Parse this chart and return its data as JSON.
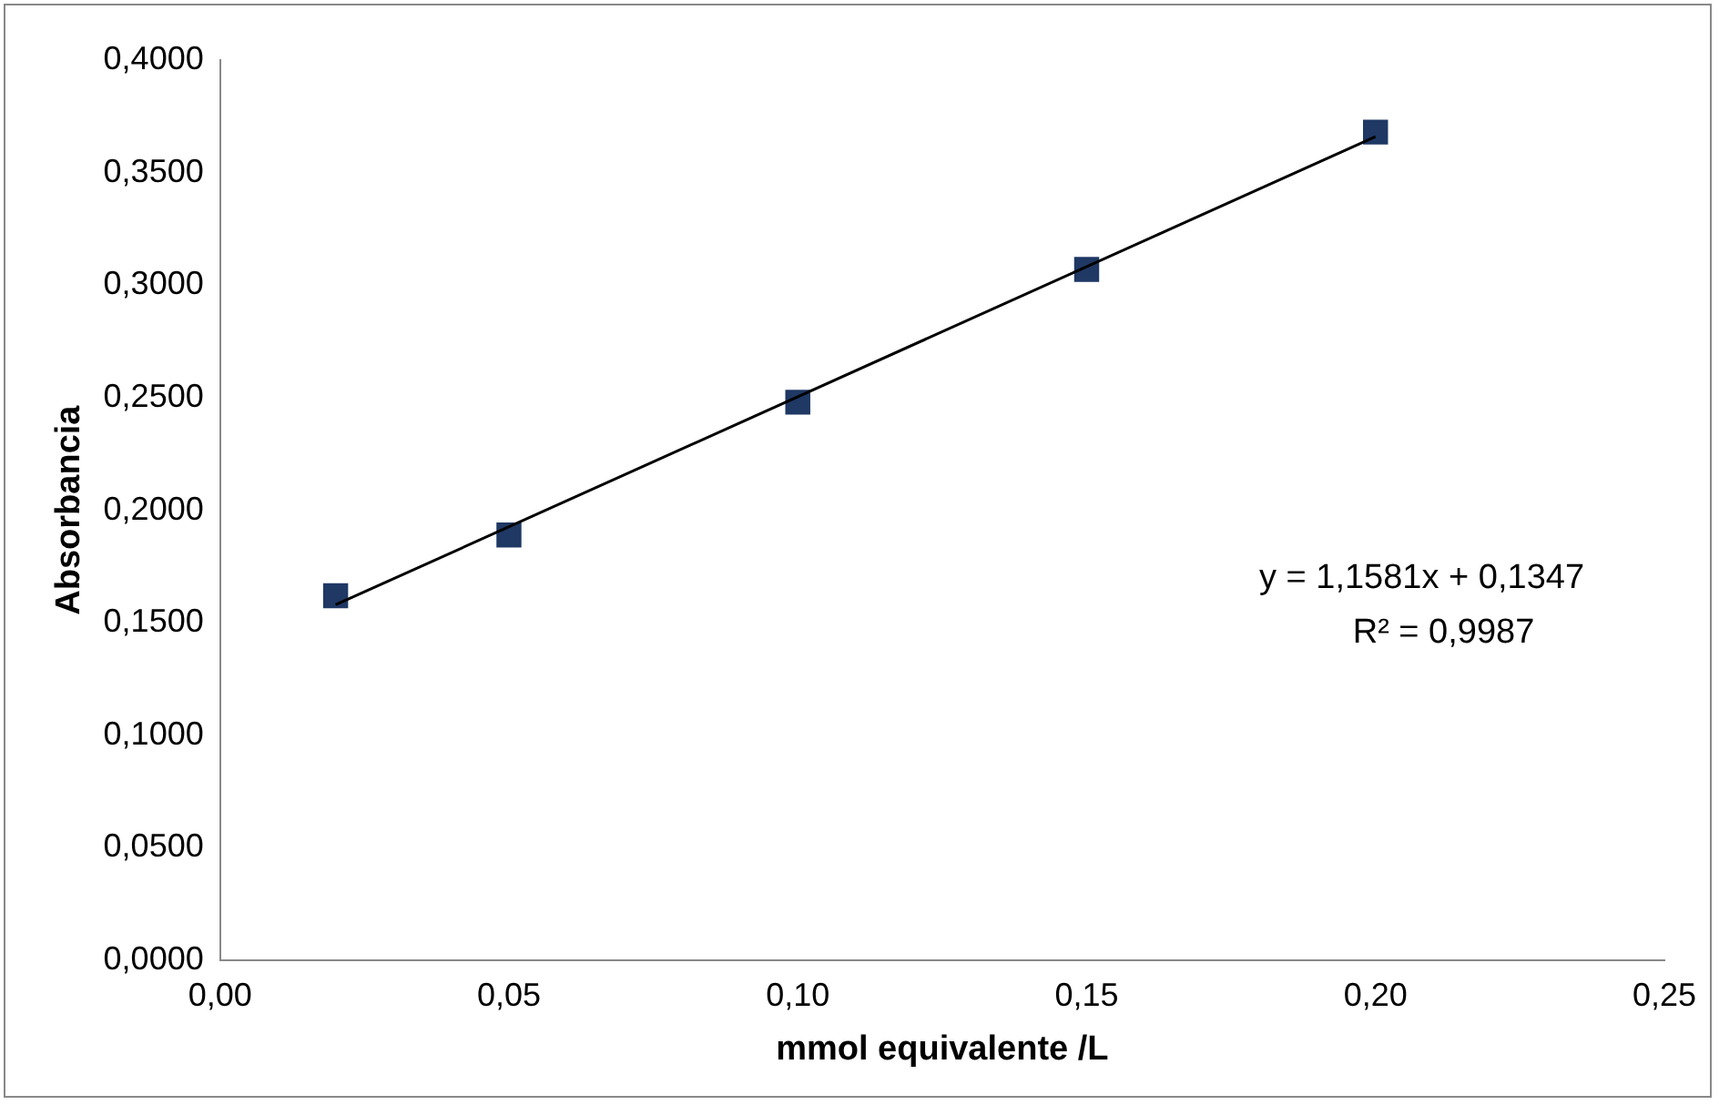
{
  "chart_data": {
    "type": "scatter",
    "xlabel": "mmol equivalente /L",
    "ylabel": "Absorbancia",
    "xlim": [
      0,
      0.25
    ],
    "xticks": [
      {
        "value": 0,
        "label": "0,00"
      },
      {
        "value": 0.05,
        "label": "0,05"
      },
      {
        "value": 0.1,
        "label": "0,10"
      },
      {
        "value": 0.15,
        "label": "0,15"
      },
      {
        "value": 0.2,
        "label": "0,20"
      },
      {
        "value": 0.25,
        "label": "0,25"
      }
    ],
    "ylim": [
      0,
      0.4
    ],
    "yticks": [
      {
        "value": 0,
        "label": "0,0000"
      },
      {
        "value": 0.05,
        "label": "0,0500"
      },
      {
        "value": 0.1,
        "label": "0,1000"
      },
      {
        "value": 0.15,
        "label": "0,1500"
      },
      {
        "value": 0.2,
        "label": "0,2000"
      },
      {
        "value": 0.25,
        "label": "0,2500"
      },
      {
        "value": 0.3,
        "label": "0,3000"
      },
      {
        "value": 0.35,
        "label": "0,3500"
      },
      {
        "value": 0.4,
        "label": "0,4000"
      }
    ],
    "grid": false,
    "legend": false,
    "series": [
      {
        "type": "scatter",
        "color": "#1f3864",
        "marker": "square",
        "x": [
          0.02,
          0.05,
          0.1,
          0.15,
          0.2
        ],
        "values": [
          0.162,
          0.189,
          0.248,
          0.307,
          0.368
        ]
      },
      {
        "type": "line",
        "color": "#000000",
        "marker": "none",
        "line_style": "solid",
        "x": [
          0.02,
          0.2
        ],
        "values": [
          0.158,
          0.366
        ]
      }
    ],
    "annotations": [
      "y = 1,1581x + 0,1347",
      "R² = 0,9987"
    ]
  }
}
